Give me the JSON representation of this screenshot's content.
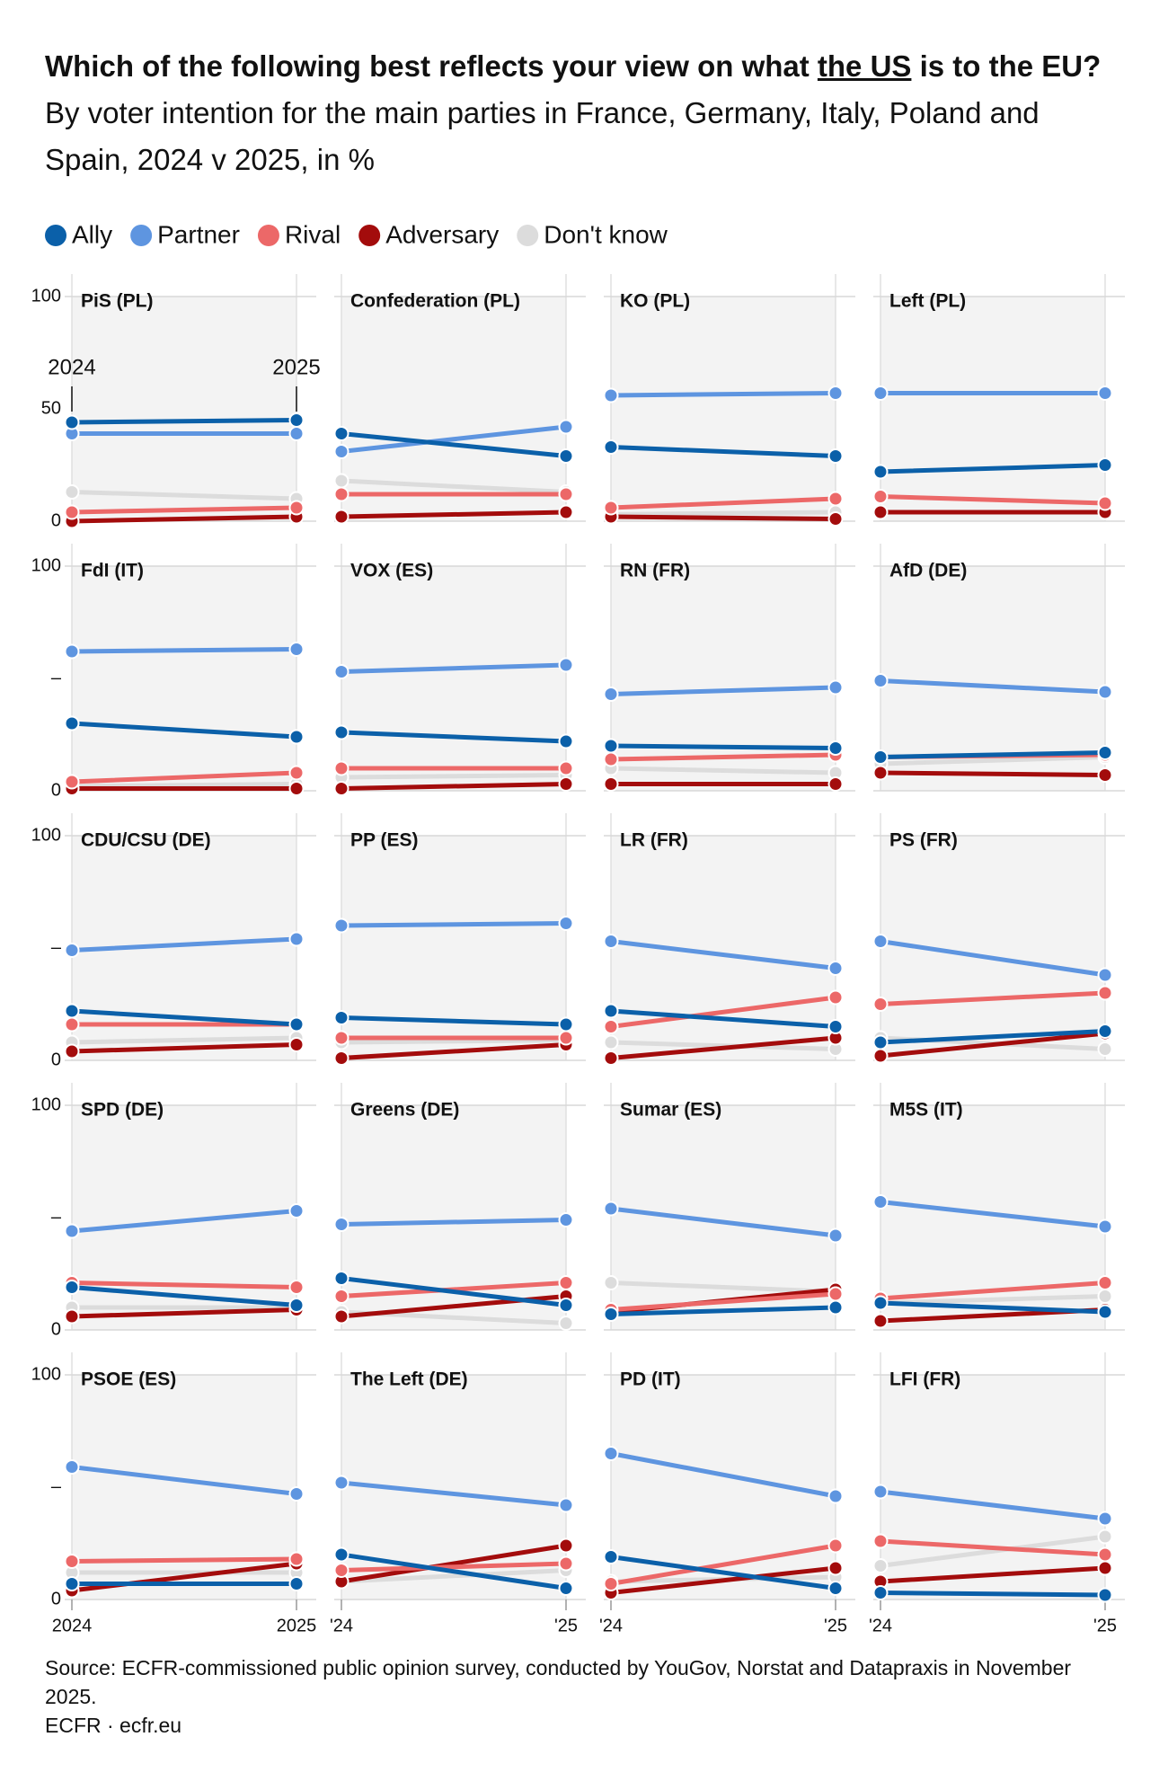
{
  "title": [
    "Which of the following best reflects your view on what",
    "the US",
    "is to the EU?"
  ],
  "subtitle": "By voter intention for the main parties in France, Germany, Italy, Poland and Spain, 2024 v 2025, in %",
  "legend": [
    {
      "name": "Ally",
      "color": "#0b60a9"
    },
    {
      "name": "Partner",
      "color": "#5e95e0"
    },
    {
      "name": "Rival",
      "color": "#ec6868"
    },
    {
      "name": "Adversary",
      "color": "#a30c0c"
    },
    {
      "name": "Don't know",
      "color": "#dcdcdc"
    }
  ],
  "chart_data": [
    {
      "type": "line",
      "title": "PiS (PL)",
      "categories": [
        "2024",
        "2025"
      ],
      "ylim": [
        0,
        100
      ],
      "yticks": [
        0,
        50,
        100
      ],
      "series": [
        {
          "values": [
            44,
            45
          ]
        },
        {
          "values": [
            39,
            39
          ]
        },
        {
          "values": [
            4,
            6
          ]
        },
        {
          "values": [
            0,
            2
          ]
        },
        {
          "values": [
            13,
            10
          ]
        }
      ]
    },
    {
      "type": "line",
      "title": "Confederation (PL)",
      "categories": [
        null,
        null
      ],
      "ylim": [
        0,
        100
      ],
      "series": [
        {
          "values": [
            39,
            29
          ]
        },
        {
          "values": [
            31,
            42
          ]
        },
        {
          "values": [
            12,
            12
          ]
        },
        {
          "values": [
            2,
            4
          ]
        },
        {
          "values": [
            18,
            13
          ]
        }
      ]
    },
    {
      "type": "line",
      "title": "KO (PL)",
      "categories": [
        null,
        null
      ],
      "ylim": [
        0,
        100
      ],
      "series": [
        {
          "values": [
            33,
            29
          ]
        },
        {
          "values": [
            56,
            57
          ]
        },
        {
          "values": [
            6,
            10
          ]
        },
        {
          "values": [
            2,
            1
          ]
        },
        {
          "values": [
            3,
            4
          ]
        }
      ]
    },
    {
      "type": "line",
      "title": "Left (PL)",
      "categories": [
        null,
        null
      ],
      "ylim": [
        0,
        100
      ],
      "series": [
        {
          "values": [
            22,
            25
          ]
        },
        {
          "values": [
            57,
            57
          ]
        },
        {
          "values": [
            11,
            8
          ]
        },
        {
          "values": [
            4,
            4
          ]
        },
        {
          "values": [
            4,
            4
          ]
        }
      ]
    },
    {
      "type": "line",
      "title": "FdI (IT)",
      "categories": [
        null,
        null
      ],
      "ylim": [
        0,
        100
      ],
      "yticks": [
        0,
        {
          "value": 50,
          "label": "–"
        },
        100
      ],
      "series": [
        {
          "values": [
            30,
            24
          ]
        },
        {
          "values": [
            62,
            63
          ]
        },
        {
          "values": [
            4,
            8
          ]
        },
        {
          "values": [
            1,
            1
          ]
        },
        {
          "values": [
            2,
            3
          ]
        }
      ]
    },
    {
      "type": "line",
      "title": "VOX (ES)",
      "categories": [
        null,
        null
      ],
      "ylim": [
        0,
        100
      ],
      "series": [
        {
          "values": [
            26,
            22
          ]
        },
        {
          "values": [
            53,
            56
          ]
        },
        {
          "values": [
            10,
            10
          ]
        },
        {
          "values": [
            1,
            3
          ]
        },
        {
          "values": [
            6,
            7
          ]
        }
      ]
    },
    {
      "type": "line",
      "title": "RN (FR)",
      "categories": [
        null,
        null
      ],
      "ylim": [
        0,
        100
      ],
      "series": [
        {
          "values": [
            20,
            19
          ]
        },
        {
          "values": [
            43,
            46
          ]
        },
        {
          "values": [
            14,
            16
          ]
        },
        {
          "values": [
            3,
            3
          ]
        },
        {
          "values": [
            10,
            8
          ]
        }
      ]
    },
    {
      "type": "line",
      "title": "AfD (DE)",
      "categories": [
        null,
        null
      ],
      "ylim": [
        0,
        100
      ],
      "series": [
        {
          "values": [
            15,
            17
          ]
        },
        {
          "values": [
            49,
            44
          ]
        },
        {
          "values": [
            15,
            16
          ]
        },
        {
          "values": [
            8,
            7
          ]
        },
        {
          "values": [
            12,
            15
          ]
        }
      ]
    },
    {
      "type": "line",
      "title": "CDU/CSU (DE)",
      "categories": [
        null,
        null
      ],
      "ylim": [
        0,
        100
      ],
      "yticks": [
        0,
        {
          "value": 50,
          "label": "–"
        },
        100
      ],
      "series": [
        {
          "values": [
            22,
            16
          ]
        },
        {
          "values": [
            49,
            54
          ]
        },
        {
          "values": [
            16,
            16
          ]
        },
        {
          "values": [
            4,
            7
          ]
        },
        {
          "values": [
            8,
            10
          ]
        }
      ]
    },
    {
      "type": "line",
      "title": "PP (ES)",
      "categories": [
        null,
        null
      ],
      "ylim": [
        0,
        100
      ],
      "series": [
        {
          "values": [
            19,
            16
          ]
        },
        {
          "values": [
            60,
            61
          ]
        },
        {
          "values": [
            10,
            10
          ]
        },
        {
          "values": [
            1,
            7
          ]
        },
        {
          "values": [
            8,
            9
          ]
        }
      ]
    },
    {
      "type": "line",
      "title": "LR (FR)",
      "categories": [
        null,
        null
      ],
      "ylim": [
        0,
        100
      ],
      "series": [
        {
          "values": [
            22,
            15
          ]
        },
        {
          "values": [
            53,
            41
          ]
        },
        {
          "values": [
            15,
            28
          ]
        },
        {
          "values": [
            1,
            10
          ]
        },
        {
          "values": [
            8,
            5
          ]
        }
      ]
    },
    {
      "type": "line",
      "title": "PS (FR)",
      "categories": [
        null,
        null
      ],
      "ylim": [
        0,
        100
      ],
      "series": [
        {
          "values": [
            8,
            13
          ]
        },
        {
          "values": [
            53,
            38
          ]
        },
        {
          "values": [
            25,
            30
          ]
        },
        {
          "values": [
            2,
            12
          ]
        },
        {
          "values": [
            10,
            5
          ]
        }
      ]
    },
    {
      "type": "line",
      "title": "SPD (DE)",
      "categories": [
        null,
        null
      ],
      "ylim": [
        0,
        100
      ],
      "yticks": [
        0,
        {
          "value": 50,
          "label": "–"
        },
        100
      ],
      "series": [
        {
          "values": [
            19,
            11
          ]
        },
        {
          "values": [
            44,
            53
          ]
        },
        {
          "values": [
            21,
            19
          ]
        },
        {
          "values": [
            6,
            9
          ]
        },
        {
          "values": [
            10,
            10
          ]
        }
      ]
    },
    {
      "type": "line",
      "title": "Greens (DE)",
      "categories": [
        null,
        null
      ],
      "ylim": [
        0,
        100
      ],
      "series": [
        {
          "values": [
            23,
            11
          ]
        },
        {
          "values": [
            47,
            49
          ]
        },
        {
          "values": [
            15,
            21
          ]
        },
        {
          "values": [
            6,
            15
          ]
        },
        {
          "values": [
            8,
            3
          ]
        }
      ]
    },
    {
      "type": "line",
      "title": "Sumar (ES)",
      "categories": [
        null,
        null
      ],
      "ylim": [
        0,
        100
      ],
      "series": [
        {
          "values": [
            7,
            10
          ]
        },
        {
          "values": [
            54,
            42
          ]
        },
        {
          "values": [
            9,
            16
          ]
        },
        {
          "values": [
            8,
            18
          ]
        },
        {
          "values": [
            21,
            17
          ]
        }
      ]
    },
    {
      "type": "line",
      "title": "M5S (IT)",
      "categories": [
        null,
        null
      ],
      "ylim": [
        0,
        100
      ],
      "series": [
        {
          "values": [
            12,
            8
          ]
        },
        {
          "values": [
            57,
            46
          ]
        },
        {
          "values": [
            14,
            21
          ]
        },
        {
          "values": [
            4,
            9
          ]
        },
        {
          "values": [
            12,
            15
          ]
        }
      ]
    },
    {
      "type": "line",
      "title": "PSOE (ES)",
      "categories": [
        "2024",
        "2025"
      ],
      "ylim": [
        0,
        100
      ],
      "yticks": [
        0,
        {
          "value": 50,
          "label": "–"
        },
        100
      ],
      "series": [
        {
          "values": [
            7,
            7
          ]
        },
        {
          "values": [
            59,
            47
          ]
        },
        {
          "values": [
            17,
            18
          ]
        },
        {
          "values": [
            4,
            16
          ]
        },
        {
          "values": [
            12,
            12
          ]
        }
      ]
    },
    {
      "type": "line",
      "title": "The Left (DE)",
      "categories": [
        "'24",
        "'25"
      ],
      "ylim": [
        0,
        100
      ],
      "series": [
        {
          "values": [
            20,
            5
          ]
        },
        {
          "values": [
            52,
            42
          ]
        },
        {
          "values": [
            13,
            16
          ]
        },
        {
          "values": [
            8,
            24
          ]
        },
        {
          "values": [
            8,
            13
          ]
        }
      ]
    },
    {
      "type": "line",
      "title": "PD (IT)",
      "categories": [
        "'24",
        "'25"
      ],
      "ylim": [
        0,
        100
      ],
      "series": [
        {
          "values": [
            19,
            5
          ]
        },
        {
          "values": [
            65,
            46
          ]
        },
        {
          "values": [
            7,
            24
          ]
        },
        {
          "values": [
            3,
            14
          ]
        },
        {
          "values": [
            8,
            10
          ]
        }
      ]
    },
    {
      "type": "line",
      "title": "LFI (FR)",
      "categories": [
        "'24",
        "'25"
      ],
      "ylim": [
        0,
        100
      ],
      "series": [
        {
          "values": [
            3,
            2
          ]
        },
        {
          "values": [
            48,
            36
          ]
        },
        {
          "values": [
            26,
            20
          ]
        },
        {
          "values": [
            8,
            14
          ]
        },
        {
          "values": [
            15,
            28
          ]
        }
      ]
    }
  ],
  "source": "Source: ECFR-commissioned public opinion survey, conducted by YouGov, Norstat and Datapraxis in November 2025.",
  "credit": "ECFR · ecfr.eu"
}
